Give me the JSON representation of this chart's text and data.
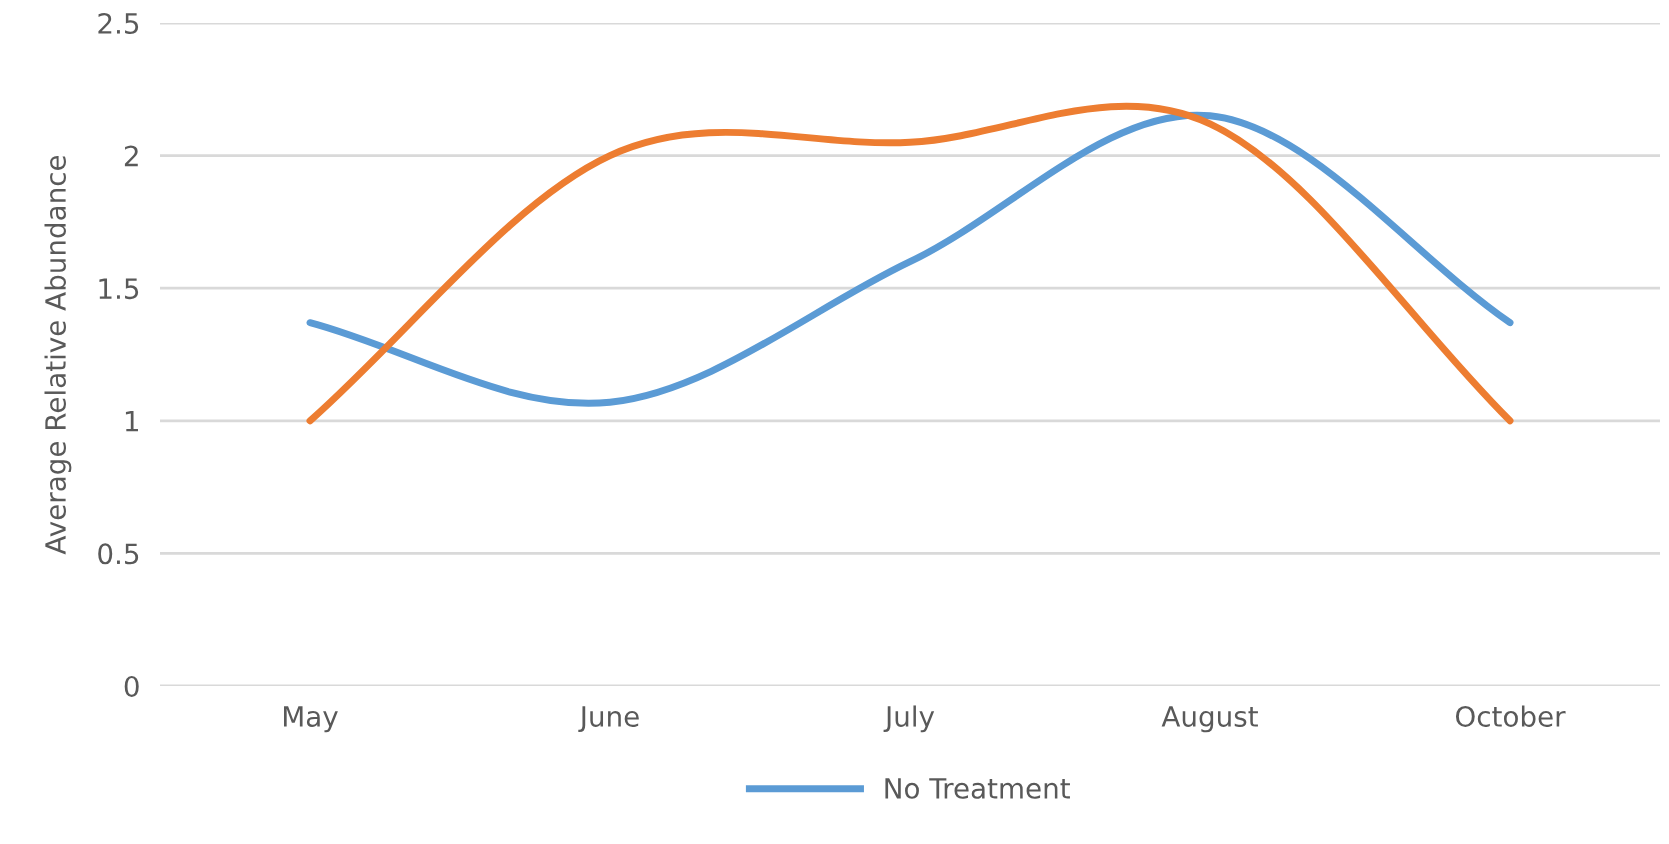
{
  "chart_data": {
    "type": "line",
    "ylabel": "Average Relative Abundance",
    "categories": [
      "May",
      "June",
      "July",
      "August",
      "October"
    ],
    "series": [
      {
        "name": "No Treatment",
        "color": "#5b9bd5",
        "values": [
          1.37,
          1.07,
          1.6,
          2.15,
          1.37
        ]
      },
      {
        "color": "#ed7d31",
        "values": [
          1.0,
          2.0,
          2.05,
          2.12,
          1.0
        ]
      }
    ],
    "ylim": [
      0,
      2.5
    ],
    "yticks": [
      0,
      0.5,
      1,
      1.5,
      2,
      2.5
    ],
    "grid": "y",
    "legend": "bottom",
    "line_style": "solid",
    "marker": "none"
  }
}
